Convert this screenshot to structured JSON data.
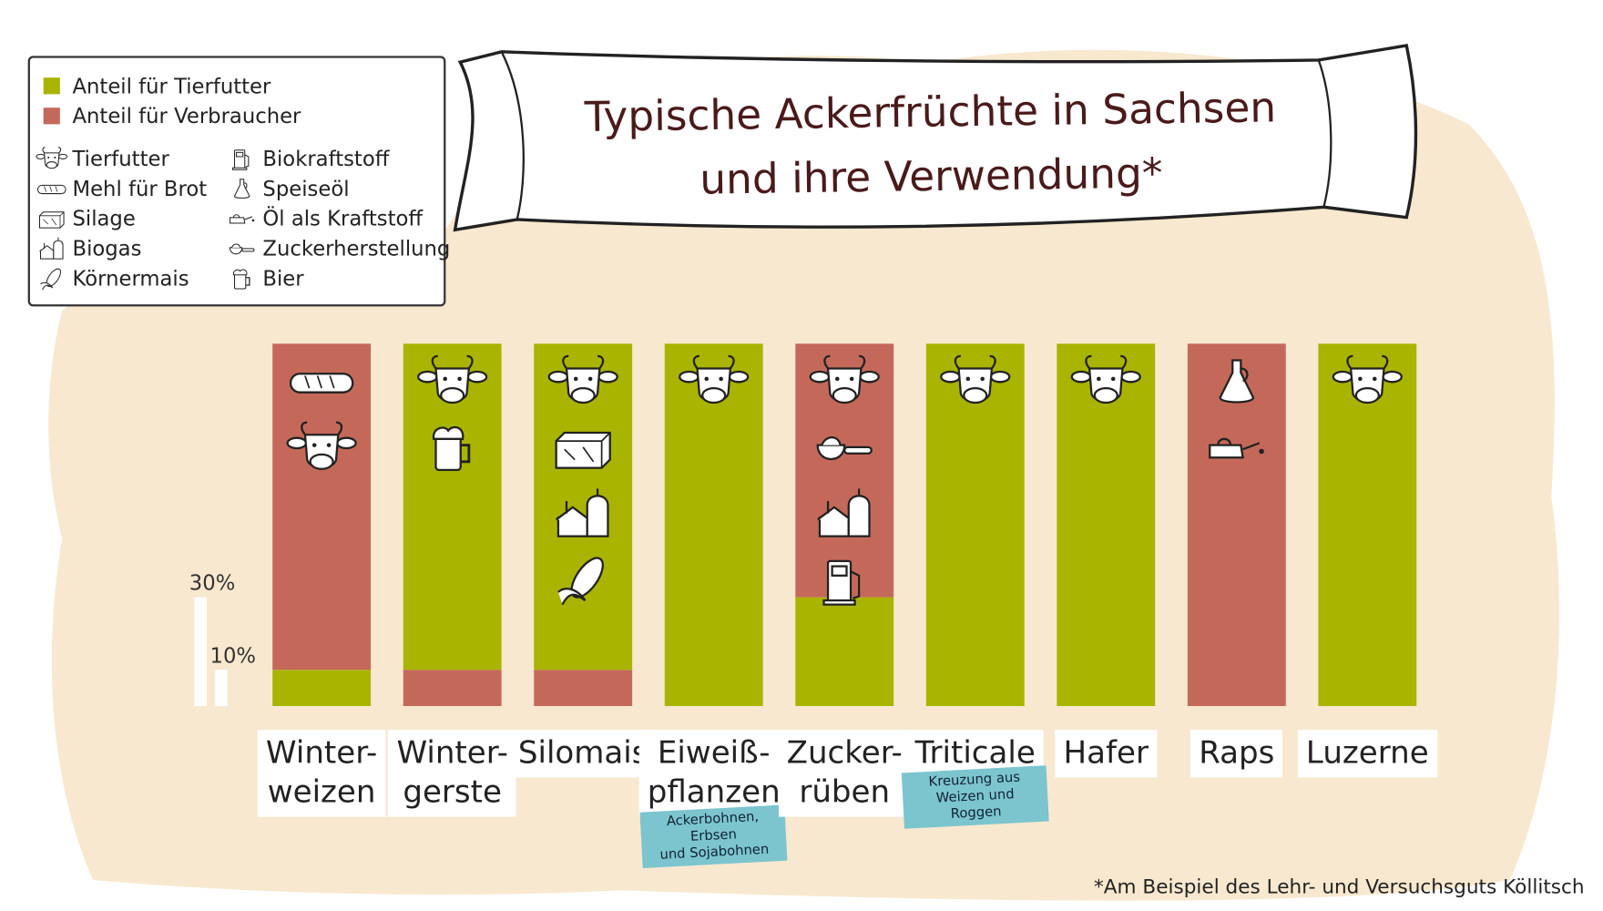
{
  "chart_data": {
    "type": "bar",
    "stacked": true,
    "title": "Typische Ackerfrüchte in Sachsen\nund ihre Verwendung*",
    "footnote": "*Am Beispiel des Lehr- und Versuchsguts Köllitsch",
    "categories": [
      "Winter-\nweizen",
      "Winter-\ngerste",
      "Silomais",
      "Eiweiß-\npflanzen",
      "Zucker-\nrüben",
      "Triticale",
      "Hafer",
      "Raps",
      "Luzerne"
    ],
    "category_notes": [
      null,
      null,
      null,
      "Ackerbohnen, Erbsen\nund Sojabohnen",
      null,
      "Kreuzung aus\nWeizen und Roggen",
      null,
      null,
      null
    ],
    "series": [
      {
        "name": "Anteil für Tierfutter",
        "color": "#a9b400",
        "values": [
          10,
          90,
          90,
          100,
          30,
          100,
          100,
          0,
          100
        ]
      },
      {
        "name": "Anteil für Verbraucher",
        "color": "#c4695a",
        "values": [
          90,
          10,
          10,
          0,
          70,
          0,
          0,
          100,
          0
        ]
      }
    ],
    "ylim": [
      0,
      100
    ],
    "scale": [
      {
        "value": 30,
        "label": "30%"
      },
      {
        "value": 10,
        "label": "10%"
      }
    ],
    "icon_legend": [
      "Tierfutter",
      "Mehl für Brot",
      "Silage",
      "Biogas",
      "Körnermais",
      "Biokraftstoff",
      "Speiseöl",
      "Öl als Kraftstoff",
      "Zuckerherstellung",
      "Bier"
    ],
    "icons": [
      [
        1,
        0
      ],
      [
        0,
        9
      ],
      [
        0,
        2,
        3,
        4
      ],
      [
        0
      ],
      [
        0,
        8,
        3,
        5
      ],
      [
        0
      ],
      [
        0
      ],
      [
        6,
        7
      ],
      [
        0
      ]
    ]
  }
}
